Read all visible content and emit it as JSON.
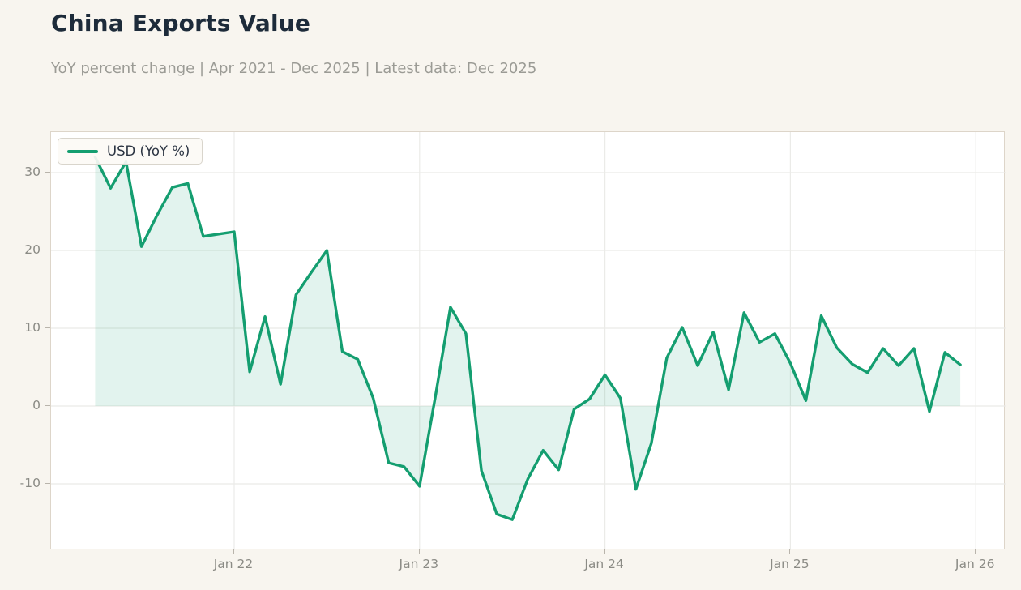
{
  "header": {
    "title": "China Exports Value",
    "subtitle": "YoY percent change | Apr 2021 - Dec 2025 | Latest data: Dec 2025"
  },
  "chart_data": {
    "type": "line",
    "title": "China Exports Value",
    "subtitle": "YoY percent change | Apr 2021 - Dec 2025 | Latest data: Dec 2025",
    "legend_position": "top-left",
    "grid": true,
    "ylim": [
      -18.5,
      35.2
    ],
    "y_ticks": [
      -10,
      0,
      10,
      20,
      30
    ],
    "x_ticks": [
      {
        "label": "Jan 22",
        "month": "2022-01"
      },
      {
        "label": "Jan 23",
        "month": "2023-01"
      },
      {
        "label": "Jan 24",
        "month": "2024-01"
      },
      {
        "label": "Jan 25",
        "month": "2025-01"
      },
      {
        "label": "Jan 26",
        "month": "2026-01"
      }
    ],
    "x": [
      "2021-04",
      "2021-05",
      "2021-06",
      "2021-07",
      "2021-08",
      "2021-09",
      "2021-10",
      "2021-11",
      "2021-12",
      "2022-01",
      "2022-02",
      "2022-03",
      "2022-04",
      "2022-05",
      "2022-06",
      "2022-07",
      "2022-08",
      "2022-09",
      "2022-10",
      "2022-11",
      "2022-12",
      "2023-01",
      "2023-02",
      "2023-03",
      "2023-04",
      "2023-05",
      "2023-06",
      "2023-07",
      "2023-08",
      "2023-09",
      "2023-10",
      "2023-11",
      "2023-12",
      "2024-01",
      "2024-02",
      "2024-03",
      "2024-04",
      "2024-05",
      "2024-06",
      "2024-07",
      "2024-08",
      "2024-09",
      "2024-10",
      "2024-11",
      "2024-12",
      "2025-01",
      "2025-02",
      "2025-03",
      "2025-04",
      "2025-05",
      "2025-06",
      "2025-07",
      "2025-08",
      "2025-09",
      "2025-10",
      "2025-11",
      "2025-12"
    ],
    "series": [
      {
        "name": "USD (YoY %)",
        "values": [
          32.0,
          28.0,
          31.4,
          20.5,
          24.5,
          28.1,
          28.6,
          21.8,
          22.1,
          22.4,
          4.4,
          11.5,
          2.8,
          14.3,
          17.2,
          20.0,
          7.0,
          6.0,
          1.0,
          -7.3,
          -7.8,
          -10.3,
          1.0,
          12.7,
          9.3,
          -8.3,
          -13.9,
          -14.6,
          -9.4,
          -5.7,
          -8.2,
          -0.4,
          0.9,
          4.0,
          1.0,
          -10.7,
          -4.8,
          6.2,
          10.1,
          5.2,
          9.5,
          2.1,
          12.0,
          8.2,
          9.3,
          5.5,
          0.7,
          11.6,
          7.5,
          5.4,
          4.3,
          7.4,
          5.2,
          7.4,
          -0.7,
          6.9,
          5.3
        ]
      }
    ],
    "colors": {
      "line": "#149e70",
      "fill": "rgba(20,158,112,0.12)",
      "grid": "#ebebe8",
      "plot_background": "#ffffff",
      "page_background": "#f8f5ef",
      "plot_border": "#ddd5c9",
      "tick_text": "#8b8b85",
      "title_text": "#1d2b3a",
      "subtitle_text": "#9b9b95"
    }
  }
}
